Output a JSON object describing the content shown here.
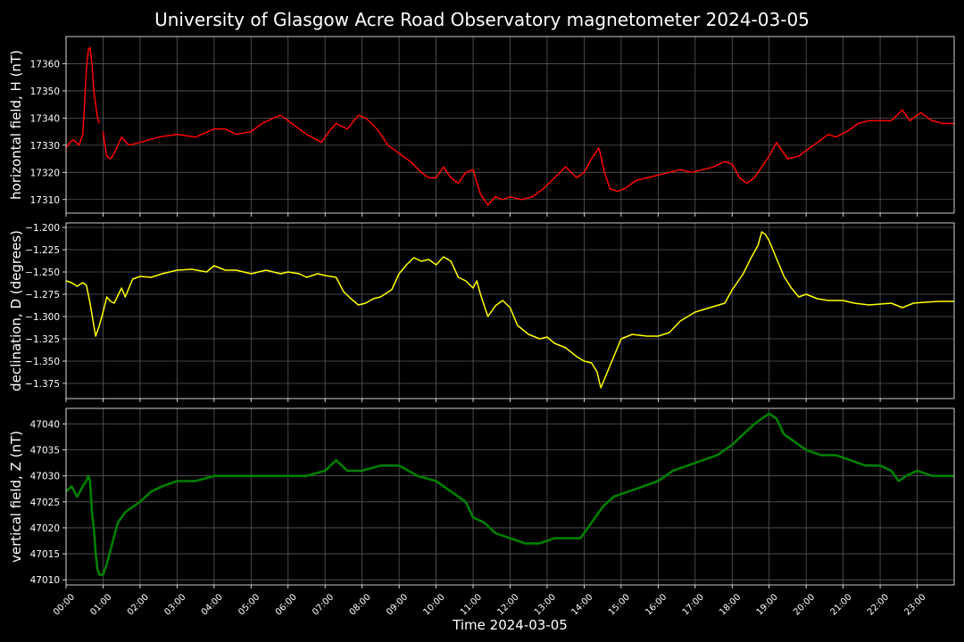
{
  "chart_data": [
    {
      "type": "line",
      "title": "University of Glasgow Acre Road Observatory magnetometer 2024-03-05",
      "ylabel": "horizontal field, H (nT)",
      "ylim": [
        17305,
        17370
      ],
      "yticks": [
        17310,
        17320,
        17330,
        17340,
        17350,
        17360
      ],
      "grid": true,
      "series": [
        {
          "color": "#ff0000",
          "x": [
            0,
            0.1,
            0.2,
            0.35,
            0.45,
            0.5,
            0.55,
            0.6,
            0.65,
            0.7,
            0.75,
            0.8,
            0.85,
            0.9,
            0.95,
            1.0,
            1.05,
            1.1,
            1.2,
            1.3,
            1.5,
            1.7,
            2.0,
            2.5,
            3.0,
            3.5,
            4.0,
            4.3,
            4.6,
            5.0,
            5.3,
            5.6,
            5.8,
            6.2,
            6.5,
            6.9,
            7.1,
            7.3,
            7.6,
            7.9,
            8.1,
            8.4,
            8.7,
            9.0,
            9.3,
            9.6,
            9.8,
            10.0,
            10.2,
            10.4,
            10.6,
            10.8,
            11.0,
            11.2,
            11.4,
            11.6,
            11.8,
            12.0,
            12.3,
            12.6,
            12.9,
            13.2,
            13.5,
            13.8,
            14.0,
            14.2,
            14.4,
            14.55,
            14.7,
            14.9,
            15.1,
            15.4,
            15.7,
            16.0,
            16.3,
            16.6,
            16.9,
            17.2,
            17.5,
            17.8,
            18.0,
            18.2,
            18.4,
            18.6,
            18.8,
            19.0,
            19.2,
            19.5,
            19.8,
            20.1,
            20.4,
            20.6,
            20.8,
            21.1,
            21.4,
            21.7,
            22.0,
            22.3,
            22.6,
            22.8,
            23.1,
            23.4,
            23.7,
            24.0
          ],
          "y": [
            17329,
            17331,
            17332,
            17330,
            17334,
            17345,
            17358,
            17365,
            17366,
            17360,
            17350,
            17345,
            17340,
            17338,
            null,
            17335,
            17330,
            17326,
            17325,
            17327,
            17333,
            17330,
            17331,
            17333,
            17334,
            17333,
            17336,
            17336,
            17334,
            17335,
            17338,
            17340,
            17341,
            17337,
            17334,
            17331,
            17335,
            17338,
            17336,
            17341,
            17340,
            17336,
            17330,
            17327,
            17324,
            17320,
            17318,
            17318,
            17322,
            17318,
            17316,
            17320,
            17321,
            17312,
            17308,
            17311,
            17310,
            17311,
            17310,
            17311,
            17314,
            17318,
            17322,
            17318,
            17320,
            17325,
            17329,
            17320,
            17314,
            17313,
            17314,
            17317,
            17318,
            17319,
            17320,
            17321,
            17320,
            17321,
            17322,
            17324,
            17323,
            17318,
            17316,
            17318,
            17322,
            17326,
            17331,
            17325,
            17326,
            17329,
            17332,
            17334,
            17333,
            17335,
            17338,
            17339,
            17339,
            17339,
            17343,
            17339,
            17342,
            17339,
            17338,
            17338
          ]
        }
      ]
    },
    {
      "type": "line",
      "ylabel": "declination, D (degrees)",
      "ylim": [
        -1.392,
        -1.195
      ],
      "yticks": [
        -1.375,
        -1.35,
        -1.325,
        -1.3,
        -1.275,
        -1.25,
        -1.225,
        -1.2
      ],
      "grid": true,
      "series": [
        {
          "color": "#ffff00",
          "x": [
            0,
            0.15,
            0.3,
            0.45,
            0.55,
            0.65,
            0.75,
            0.8,
            0.9,
            1.0,
            1.1,
            1.2,
            1.3,
            1.5,
            1.6,
            1.8,
            2.0,
            2.3,
            2.6,
            3.0,
            3.4,
            3.8,
            4.0,
            4.3,
            4.6,
            5.0,
            5.4,
            5.8,
            6.0,
            6.3,
            6.5,
            6.8,
            7.0,
            7.3,
            7.5,
            7.7,
            7.9,
            8.1,
            8.3,
            8.5,
            8.8,
            9.0,
            9.2,
            9.4,
            9.6,
            9.8,
            10.0,
            10.2,
            10.4,
            10.6,
            10.8,
            11.0,
            11.1,
            11.2,
            11.4,
            11.6,
            11.8,
            12.0,
            12.2,
            12.5,
            12.8,
            13.0,
            13.2,
            13.5,
            13.8,
            14.0,
            14.2,
            14.35,
            14.45,
            14.6,
            14.8,
            15.0,
            15.3,
            15.7,
            16.0,
            16.3,
            16.6,
            17.0,
            17.4,
            17.8,
            18.0,
            18.3,
            18.5,
            18.7,
            18.8,
            18.9,
            19.0,
            19.2,
            19.4,
            19.6,
            19.8,
            20.0,
            20.3,
            20.6,
            21.0,
            21.3,
            21.7,
            22.0,
            22.3,
            22.6,
            22.9,
            23.2,
            23.6,
            24.0
          ],
          "y": [
            -1.26,
            -1.262,
            -1.266,
            -1.262,
            -1.265,
            -1.285,
            -1.31,
            -1.322,
            -1.31,
            -1.295,
            -1.278,
            -1.283,
            -1.285,
            -1.268,
            -1.278,
            -1.258,
            -1.255,
            -1.256,
            -1.252,
            -1.248,
            -1.247,
            -1.25,
            -1.243,
            -1.248,
            -1.248,
            -1.252,
            -1.248,
            -1.252,
            -1.25,
            -1.252,
            -1.256,
            -1.252,
            -1.254,
            -1.256,
            -1.272,
            -1.28,
            -1.287,
            -1.285,
            -1.28,
            -1.278,
            -1.27,
            -1.252,
            -1.242,
            -1.234,
            -1.238,
            -1.236,
            -1.242,
            -1.233,
            -1.238,
            -1.256,
            -1.26,
            -1.268,
            -1.26,
            -1.275,
            -1.3,
            -1.288,
            -1.282,
            -1.29,
            -1.31,
            -1.32,
            -1.325,
            -1.323,
            -1.33,
            -1.335,
            -1.345,
            -1.35,
            -1.352,
            -1.362,
            -1.38,
            -1.365,
            -1.345,
            -1.325,
            -1.32,
            -1.322,
            -1.322,
            -1.318,
            -1.305,
            -1.295,
            -1.29,
            -1.285,
            -1.27,
            -1.252,
            -1.235,
            -1.22,
            -1.205,
            -1.208,
            -1.215,
            -1.235,
            -1.255,
            -1.268,
            -1.278,
            -1.275,
            -1.28,
            -1.282,
            -1.282,
            -1.285,
            -1.287,
            -1.286,
            -1.285,
            -1.29,
            -1.285,
            -1.284,
            -1.283,
            -1.283
          ]
        }
      ]
    },
    {
      "type": "line",
      "ylabel": "vertical field, Z (nT)",
      "xlabel": "Time 2024-03-05",
      "ylim": [
        47009,
        47043
      ],
      "yticks": [
        47010,
        47015,
        47020,
        47025,
        47030,
        47035,
        47040
      ],
      "xticks": [
        "00:00",
        "01:00",
        "02:00",
        "03:00",
        "04:00",
        "05:00",
        "06:00",
        "07:00",
        "08:00",
        "09:00",
        "10:00",
        "11:00",
        "12:00",
        "13:00",
        "14:00",
        "15:00",
        "16:00",
        "17:00",
        "18:00",
        "19:00",
        "20:00",
        "21:00",
        "22:00",
        "23:00"
      ],
      "grid": true,
      "series": [
        {
          "color": "#008000",
          "x": [
            0,
            0.15,
            0.3,
            0.45,
            0.55,
            0.6,
            0.65,
            0.7,
            0.75,
            0.8,
            0.85,
            0.9,
            1.0,
            1.1,
            1.25,
            1.4,
            1.6,
            1.8,
            2.0,
            2.3,
            2.6,
            3.0,
            3.5,
            4.0,
            4.5,
            5.0,
            5.5,
            6.0,
            6.5,
            7.0,
            7.3,
            7.6,
            8.0,
            8.5,
            9.0,
            9.5,
            10.0,
            10.4,
            10.8,
            11.0,
            11.3,
            11.6,
            12.0,
            12.4,
            12.8,
            13.2,
            13.6,
            13.9,
            14.1,
            14.3,
            14.5,
            14.8,
            15.2,
            15.6,
            16.0,
            16.4,
            16.8,
            17.2,
            17.6,
            18.0,
            18.3,
            18.6,
            18.8,
            19.0,
            19.2,
            19.4,
            19.6,
            19.8,
            20.0,
            20.4,
            20.8,
            21.2,
            21.6,
            22.0,
            22.3,
            22.5,
            22.7,
            23.0,
            23.4,
            23.7,
            24.0
          ],
          "y": [
            47027,
            47028,
            47026,
            47028,
            47029,
            47030,
            47029,
            47023,
            47020,
            47015,
            47012,
            47011,
            47011,
            47013,
            47017,
            47021,
            47023,
            47024,
            47025,
            47027,
            47028,
            47029,
            47029,
            47030,
            47030,
            47030,
            47030,
            47030,
            47030,
            47031,
            47033,
            47031,
            47031,
            47032,
            47032,
            47030,
            47029,
            47027,
            47025,
            47022,
            47021,
            47019,
            47018,
            47017,
            47017,
            47018,
            47018,
            47018,
            47020,
            47022,
            47024,
            47026,
            47027,
            47028,
            47029,
            47031,
            47032,
            47033,
            47034,
            47036,
            47038,
            47040,
            47041,
            47042,
            47041,
            47038,
            47037,
            47036,
            47035,
            47034,
            47034,
            47033,
            47032,
            47032,
            47031,
            47029,
            47030,
            47031,
            47030,
            47030,
            47030
          ]
        }
      ]
    }
  ]
}
